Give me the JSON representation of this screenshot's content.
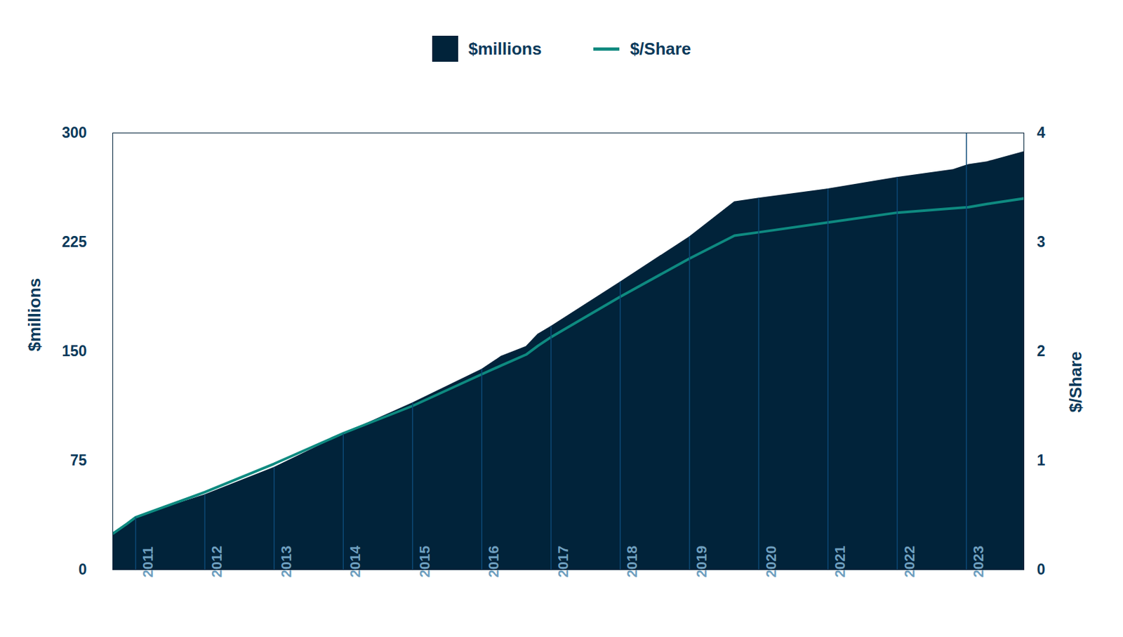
{
  "chart_data": {
    "type": "line",
    "y_label": "$millions",
    "y2_label": "$/Share",
    "x": [
      2010.67,
      2010.875,
      2011,
      2012,
      2013,
      2014,
      2015,
      2016,
      2016.28,
      2016.64,
      2016.81,
      2017,
      2018,
      2019,
      2019.65,
      2020,
      2021,
      2022,
      2022.81,
      2023.03,
      2023.3,
      2023.83
    ],
    "series": [
      {
        "name": "$millions",
        "type": "area",
        "color": "#01233a",
        "values": [
          25,
          31.5,
          36,
          51.6,
          70.3,
          93.4,
          114.6,
          137.7,
          146.6,
          153.4,
          161.8,
          167.2,
          197.7,
          228.7,
          252.8,
          255.2,
          261.6,
          269.5,
          274.9,
          278.4,
          280.3,
          287.2
        ]
      },
      {
        "name": "$/Share",
        "type": "line",
        "axis": "y2",
        "color": "#0e8a80",
        "values": [
          0.33,
          0.42,
          0.48,
          0.71,
          0.97,
          1.25,
          1.5,
          1.79,
          1.87,
          1.97,
          2.05,
          2.13,
          2.5,
          2.85,
          3.06,
          3.09,
          3.18,
          3.27,
          3.31,
          3.32,
          3.35,
          3.4
        ]
      }
    ],
    "xlim": [
      2010.67,
      2023.83
    ],
    "xticks": [
      2011,
      2012,
      2013,
      2014,
      2015,
      2016,
      2017,
      2018,
      2019,
      2020,
      2021,
      2022,
      2023
    ],
    "ylim": [
      0,
      300
    ],
    "yticks": [
      0,
      75,
      150,
      225,
      300
    ],
    "y2lim": [
      0,
      4
    ],
    "y2ticks": [
      0,
      1,
      2,
      3,
      4
    ],
    "grid": true,
    "legend": "top"
  }
}
